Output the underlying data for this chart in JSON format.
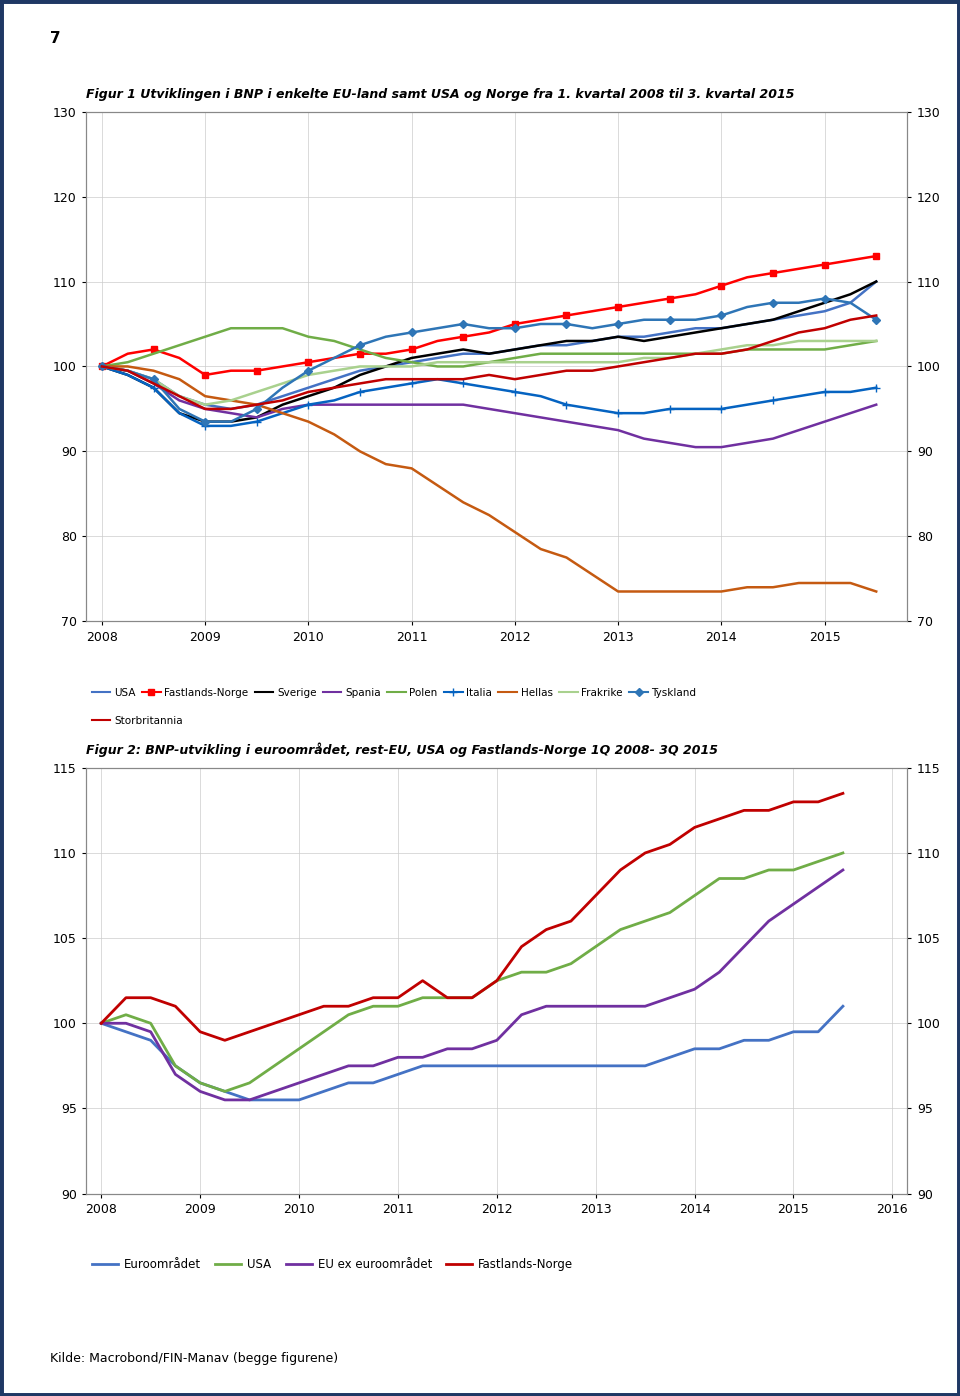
{
  "page_number": "7",
  "fig1_title": "Figur 1 Utviklingen i BNP i enkelte EU-land samt USA og Norge fra 1. kvartal 2008 til 3. kvartal 2015",
  "fig2_title": "Figur 2: BNP-utvikling i euroområdet, rest-EU, USA og Fastlands-Norge 1Q 2008- 3Q 2015",
  "source": "Kilde: Macrobond/FIN-Manav (begge figurene)",
  "background_color": "#ffffff",
  "border_color": "#1f3864",
  "fig1": {
    "ylim": [
      70,
      130
    ],
    "yticks": [
      70,
      80,
      90,
      100,
      110,
      120,
      130
    ],
    "xtick_labels": [
      "2008",
      "2009",
      "2010",
      "2011",
      "2012",
      "2013",
      "2014",
      "2015"
    ],
    "xtick_positions": [
      2008,
      2009,
      2010,
      2011,
      2012,
      2013,
      2014,
      2015
    ],
    "series": {
      "USA": {
        "color": "#4472c4",
        "marker": null,
        "lw": 1.8,
        "data_x": [
          2008.0,
          2008.25,
          2008.5,
          2008.75,
          2009.0,
          2009.25,
          2009.5,
          2009.75,
          2010.0,
          2010.25,
          2010.5,
          2010.75,
          2011.0,
          2011.25,
          2011.5,
          2011.75,
          2012.0,
          2012.25,
          2012.5,
          2012.75,
          2013.0,
          2013.25,
          2013.5,
          2013.75,
          2014.0,
          2014.25,
          2014.5,
          2014.75,
          2015.0,
          2015.25,
          2015.5
        ],
        "data_y": [
          100,
          99.5,
          98.5,
          96.5,
          95.5,
          95.0,
          95.5,
          96.5,
          97.5,
          98.5,
          99.5,
          100.0,
          100.5,
          101.0,
          101.5,
          101.5,
          102.0,
          102.5,
          102.5,
          103.0,
          103.5,
          103.5,
          104.0,
          104.5,
          104.5,
          105.0,
          105.5,
          106.0,
          106.5,
          107.5,
          110.0
        ]
      },
      "Fastlands-Norge": {
        "color": "#ff0000",
        "marker": "s",
        "markersize": 4,
        "lw": 1.8,
        "data_x": [
          2008.0,
          2008.25,
          2008.5,
          2008.75,
          2009.0,
          2009.25,
          2009.5,
          2009.75,
          2010.0,
          2010.25,
          2010.5,
          2010.75,
          2011.0,
          2011.25,
          2011.5,
          2011.75,
          2012.0,
          2012.25,
          2012.5,
          2012.75,
          2013.0,
          2013.25,
          2013.5,
          2013.75,
          2014.0,
          2014.25,
          2014.5,
          2014.75,
          2015.0,
          2015.25,
          2015.5
        ],
        "data_y": [
          100,
          101.5,
          102,
          101,
          99.0,
          99.5,
          99.5,
          100.0,
          100.5,
          101.0,
          101.5,
          101.5,
          102.0,
          103.0,
          103.5,
          104.0,
          105.0,
          105.5,
          106.0,
          106.5,
          107.0,
          107.5,
          108.0,
          108.5,
          109.5,
          110.5,
          111.0,
          111.5,
          112.0,
          112.5,
          113.0
        ]
      },
      "Sverige": {
        "color": "#000000",
        "marker": null,
        "lw": 1.8,
        "data_x": [
          2008.0,
          2008.25,
          2008.5,
          2008.75,
          2009.0,
          2009.25,
          2009.5,
          2009.75,
          2010.0,
          2010.25,
          2010.5,
          2010.75,
          2011.0,
          2011.25,
          2011.5,
          2011.75,
          2012.0,
          2012.25,
          2012.5,
          2012.75,
          2013.0,
          2013.25,
          2013.5,
          2013.75,
          2014.0,
          2014.25,
          2014.5,
          2014.75,
          2015.0,
          2015.25,
          2015.5
        ],
        "data_y": [
          100,
          99.0,
          97.5,
          94.5,
          93.5,
          93.5,
          94.0,
          95.5,
          96.5,
          97.5,
          99.0,
          100.0,
          101.0,
          101.5,
          102.0,
          101.5,
          102.0,
          102.5,
          103.0,
          103.0,
          103.5,
          103.0,
          103.5,
          104.0,
          104.5,
          105.0,
          105.5,
          106.5,
          107.5,
          108.5,
          110.0
        ]
      },
      "Spania": {
        "color": "#7030a0",
        "marker": null,
        "lw": 1.8,
        "data_x": [
          2008.0,
          2008.25,
          2008.5,
          2008.75,
          2009.0,
          2009.25,
          2009.5,
          2009.75,
          2010.0,
          2010.25,
          2010.5,
          2010.75,
          2011.0,
          2011.25,
          2011.5,
          2011.75,
          2012.0,
          2012.25,
          2012.5,
          2012.75,
          2013.0,
          2013.25,
          2013.5,
          2013.75,
          2014.0,
          2014.25,
          2014.5,
          2014.75,
          2015.0,
          2015.25,
          2015.5
        ],
        "data_y": [
          100,
          99.5,
          98.0,
          96.0,
          95.0,
          94.5,
          94.0,
          95.0,
          95.5,
          95.5,
          95.5,
          95.5,
          95.5,
          95.5,
          95.5,
          95.0,
          94.5,
          94.0,
          93.5,
          93.0,
          92.5,
          91.5,
          91.0,
          90.5,
          90.5,
          91.0,
          91.5,
          92.5,
          93.5,
          94.5,
          95.5
        ]
      },
      "Polen": {
        "color": "#70ad47",
        "marker": null,
        "lw": 1.8,
        "data_x": [
          2008.0,
          2008.25,
          2008.5,
          2008.75,
          2009.0,
          2009.25,
          2009.5,
          2009.75,
          2010.0,
          2010.25,
          2010.5,
          2010.75,
          2011.0,
          2011.25,
          2011.5,
          2011.75,
          2012.0,
          2012.25,
          2012.5,
          2012.75,
          2013.0,
          2013.25,
          2013.5,
          2013.75,
          2014.0,
          2014.25,
          2014.5,
          2014.75,
          2015.0,
          2015.25,
          2015.5
        ],
        "data_y": [
          100,
          100.5,
          101.5,
          102.5,
          103.5,
          104.5,
          104.5,
          104.5,
          103.5,
          103.0,
          102.0,
          101.0,
          100.5,
          100.0,
          100.0,
          100.5,
          101.0,
          101.5,
          101.5,
          101.5,
          101.5,
          101.5,
          101.5,
          101.5,
          101.5,
          102.0,
          102.0,
          102.0,
          102.0,
          102.5,
          103.0
        ]
      },
      "Italia": {
        "color": "#0563c1",
        "marker": "+",
        "markersize": 6,
        "lw": 1.8,
        "data_x": [
          2008.0,
          2008.25,
          2008.5,
          2008.75,
          2009.0,
          2009.25,
          2009.5,
          2009.75,
          2010.0,
          2010.25,
          2010.5,
          2010.75,
          2011.0,
          2011.25,
          2011.5,
          2011.75,
          2012.0,
          2012.25,
          2012.5,
          2012.75,
          2013.0,
          2013.25,
          2013.5,
          2013.75,
          2014.0,
          2014.25,
          2014.5,
          2014.75,
          2015.0,
          2015.25,
          2015.5
        ],
        "data_y": [
          100,
          99.0,
          97.5,
          94.5,
          93.0,
          93.0,
          93.5,
          94.5,
          95.5,
          96.0,
          97.0,
          97.5,
          98.0,
          98.5,
          98.0,
          97.5,
          97.0,
          96.5,
          95.5,
          95.0,
          94.5,
          94.5,
          95.0,
          95.0,
          95.0,
          95.5,
          96.0,
          96.5,
          97.0,
          97.0,
          97.5
        ]
      },
      "Hellas": {
        "color": "#c55a11",
        "marker": null,
        "lw": 1.8,
        "data_x": [
          2008.0,
          2008.25,
          2008.5,
          2008.75,
          2009.0,
          2009.25,
          2009.5,
          2009.75,
          2010.0,
          2010.25,
          2010.5,
          2010.75,
          2011.0,
          2011.25,
          2011.5,
          2011.75,
          2012.0,
          2012.25,
          2012.5,
          2012.75,
          2013.0,
          2013.25,
          2013.5,
          2013.75,
          2014.0,
          2014.25,
          2014.5,
          2014.75,
          2015.0,
          2015.25,
          2015.5
        ],
        "data_y": [
          100,
          100.0,
          99.5,
          98.5,
          96.5,
          96.0,
          95.5,
          94.5,
          93.5,
          92.0,
          90.0,
          88.5,
          88.0,
          86.0,
          84.0,
          82.5,
          80.5,
          78.5,
          77.5,
          75.5,
          73.5,
          73.5,
          73.5,
          73.5,
          73.5,
          74.0,
          74.0,
          74.5,
          74.5,
          74.5,
          73.5
        ]
      },
      "Frakrike": {
        "color": "#a9d18e",
        "marker": null,
        "lw": 1.8,
        "data_x": [
          2008.0,
          2008.25,
          2008.5,
          2008.75,
          2009.0,
          2009.25,
          2009.5,
          2009.75,
          2010.0,
          2010.25,
          2010.5,
          2010.75,
          2011.0,
          2011.25,
          2011.5,
          2011.75,
          2012.0,
          2012.25,
          2012.5,
          2012.75,
          2013.0,
          2013.25,
          2013.5,
          2013.75,
          2014.0,
          2014.25,
          2014.5,
          2014.75,
          2015.0,
          2015.25,
          2015.5
        ],
        "data_y": [
          100,
          99.5,
          98.5,
          96.5,
          95.5,
          96.0,
          97.0,
          98.0,
          99.0,
          99.5,
          100.0,
          100.0,
          100.0,
          100.5,
          100.5,
          100.5,
          100.5,
          100.5,
          100.5,
          100.5,
          100.5,
          101.0,
          101.0,
          101.5,
          102.0,
          102.5,
          102.5,
          103.0,
          103.0,
          103.0,
          103.0
        ]
      },
      "Tyskland": {
        "color": "#2e75b6",
        "marker": "D",
        "markersize": 4,
        "lw": 1.8,
        "data_x": [
          2008.0,
          2008.25,
          2008.5,
          2008.75,
          2009.0,
          2009.25,
          2009.5,
          2009.75,
          2010.0,
          2010.25,
          2010.5,
          2010.75,
          2011.0,
          2011.25,
          2011.5,
          2011.75,
          2012.0,
          2012.25,
          2012.5,
          2012.75,
          2013.0,
          2013.25,
          2013.5,
          2013.75,
          2014.0,
          2014.25,
          2014.5,
          2014.75,
          2015.0,
          2015.25,
          2015.5
        ],
        "data_y": [
          100,
          99.5,
          98.5,
          95.0,
          93.5,
          93.5,
          95.0,
          97.5,
          99.5,
          101.0,
          102.5,
          103.5,
          104.0,
          104.5,
          105.0,
          104.5,
          104.5,
          105.0,
          105.0,
          104.5,
          105.0,
          105.5,
          105.5,
          105.5,
          106.0,
          107.0,
          107.5,
          107.5,
          108.0,
          107.5,
          105.5
        ]
      },
      "Storbritannia": {
        "color": "#c00000",
        "marker": null,
        "lw": 1.8,
        "data_x": [
          2008.0,
          2008.25,
          2008.5,
          2008.75,
          2009.0,
          2009.25,
          2009.5,
          2009.75,
          2010.0,
          2010.25,
          2010.5,
          2010.75,
          2011.0,
          2011.25,
          2011.5,
          2011.75,
          2012.0,
          2012.25,
          2012.5,
          2012.75,
          2013.0,
          2013.25,
          2013.5,
          2013.75,
          2014.0,
          2014.25,
          2014.5,
          2014.75,
          2015.0,
          2015.25,
          2015.5
        ],
        "data_y": [
          100,
          99.5,
          98.0,
          96.5,
          95.0,
          95.0,
          95.5,
          96.0,
          97.0,
          97.5,
          98.0,
          98.5,
          98.5,
          98.5,
          98.5,
          99.0,
          98.5,
          99.0,
          99.5,
          99.5,
          100.0,
          100.5,
          101.0,
          101.5,
          101.5,
          102.0,
          103.0,
          104.0,
          104.5,
          105.5,
          106.0
        ]
      }
    },
    "legend_order": [
      "USA",
      "Fastlands-Norge",
      "Sverige",
      "Spania",
      "Polen",
      "Italia",
      "Hellas",
      "Frakrike",
      "Tyskland",
      "Storbritannia"
    ]
  },
  "fig2": {
    "ylim": [
      90,
      115
    ],
    "yticks": [
      90,
      95,
      100,
      105,
      110,
      115
    ],
    "xtick_labels": [
      "2008",
      "2009",
      "2010",
      "2011",
      "2012",
      "2013",
      "2014",
      "2015",
      "2016"
    ],
    "xtick_positions": [
      2008,
      2009,
      2010,
      2011,
      2012,
      2013,
      2014,
      2015,
      2016
    ],
    "series": {
      "Euroområdet": {
        "color": "#4472c4",
        "lw": 2.0,
        "data_x": [
          2008.0,
          2008.25,
          2008.5,
          2008.75,
          2009.0,
          2009.25,
          2009.5,
          2009.75,
          2010.0,
          2010.25,
          2010.5,
          2010.75,
          2011.0,
          2011.25,
          2011.5,
          2011.75,
          2012.0,
          2012.25,
          2012.5,
          2012.75,
          2013.0,
          2013.25,
          2013.5,
          2013.75,
          2014.0,
          2014.25,
          2014.5,
          2014.75,
          2015.0,
          2015.25,
          2015.5
        ],
        "data_y": [
          100,
          99.5,
          99.0,
          97.5,
          96.5,
          96.0,
          95.5,
          95.5,
          95.5,
          96.0,
          96.5,
          96.5,
          97.0,
          97.5,
          97.5,
          97.5,
          97.5,
          97.5,
          97.5,
          97.5,
          97.5,
          97.5,
          97.5,
          98.0,
          98.5,
          98.5,
          99.0,
          99.0,
          99.5,
          99.5,
          101.0
        ]
      },
      "USA": {
        "color": "#70ad47",
        "lw": 2.0,
        "data_x": [
          2008.0,
          2008.25,
          2008.5,
          2008.75,
          2009.0,
          2009.25,
          2009.5,
          2009.75,
          2010.0,
          2010.25,
          2010.5,
          2010.75,
          2011.0,
          2011.25,
          2011.5,
          2011.75,
          2012.0,
          2012.25,
          2012.5,
          2012.75,
          2013.0,
          2013.25,
          2013.5,
          2013.75,
          2014.0,
          2014.25,
          2014.5,
          2014.75,
          2015.0,
          2015.25,
          2015.5
        ],
        "data_y": [
          100,
          100.5,
          100.0,
          97.5,
          96.5,
          96.0,
          96.5,
          97.5,
          98.5,
          99.5,
          100.5,
          101.0,
          101.0,
          101.5,
          101.5,
          101.5,
          102.5,
          103.0,
          103.0,
          103.5,
          104.5,
          105.5,
          106.0,
          106.5,
          107.5,
          108.5,
          108.5,
          109.0,
          109.0,
          109.5,
          110.0
        ]
      },
      "EU ex euroområdet": {
        "color": "#7030a0",
        "lw": 2.0,
        "data_x": [
          2008.0,
          2008.25,
          2008.5,
          2008.75,
          2009.0,
          2009.25,
          2009.5,
          2009.75,
          2010.0,
          2010.25,
          2010.5,
          2010.75,
          2011.0,
          2011.25,
          2011.5,
          2011.75,
          2012.0,
          2012.25,
          2012.5,
          2012.75,
          2013.0,
          2013.25,
          2013.5,
          2013.75,
          2014.0,
          2014.25,
          2014.5,
          2014.75,
          2015.0,
          2015.25,
          2015.5
        ],
        "data_y": [
          100,
          100.0,
          99.5,
          97.0,
          96.0,
          95.5,
          95.5,
          96.0,
          96.5,
          97.0,
          97.5,
          97.5,
          98.0,
          98.0,
          98.5,
          98.5,
          99.0,
          100.5,
          101.0,
          101.0,
          101.0,
          101.0,
          101.0,
          101.5,
          102.0,
          103.0,
          104.5,
          106.0,
          107.0,
          108.0,
          109.0
        ]
      },
      "Fastlands-Norge": {
        "color": "#c00000",
        "lw": 2.0,
        "data_x": [
          2008.0,
          2008.25,
          2008.5,
          2008.75,
          2009.0,
          2009.25,
          2009.5,
          2009.75,
          2010.0,
          2010.25,
          2010.5,
          2010.75,
          2011.0,
          2011.25,
          2011.5,
          2011.75,
          2012.0,
          2012.25,
          2012.5,
          2012.75,
          2013.0,
          2013.25,
          2013.5,
          2013.75,
          2014.0,
          2014.25,
          2014.5,
          2014.75,
          2015.0,
          2015.25,
          2015.5
        ],
        "data_y": [
          100,
          101.5,
          101.5,
          101.0,
          99.5,
          99.0,
          99.5,
          100.0,
          100.5,
          101.0,
          101.0,
          101.5,
          101.5,
          102.5,
          101.5,
          101.5,
          102.5,
          104.5,
          105.5,
          106.0,
          107.5,
          109.0,
          110.0,
          110.5,
          111.5,
          112.0,
          112.5,
          112.5,
          113.0,
          113.0,
          113.5
        ]
      }
    },
    "legend_order": [
      "Euroområdet",
      "USA",
      "EU ex euroområdet",
      "Fastlands-Norge"
    ]
  }
}
